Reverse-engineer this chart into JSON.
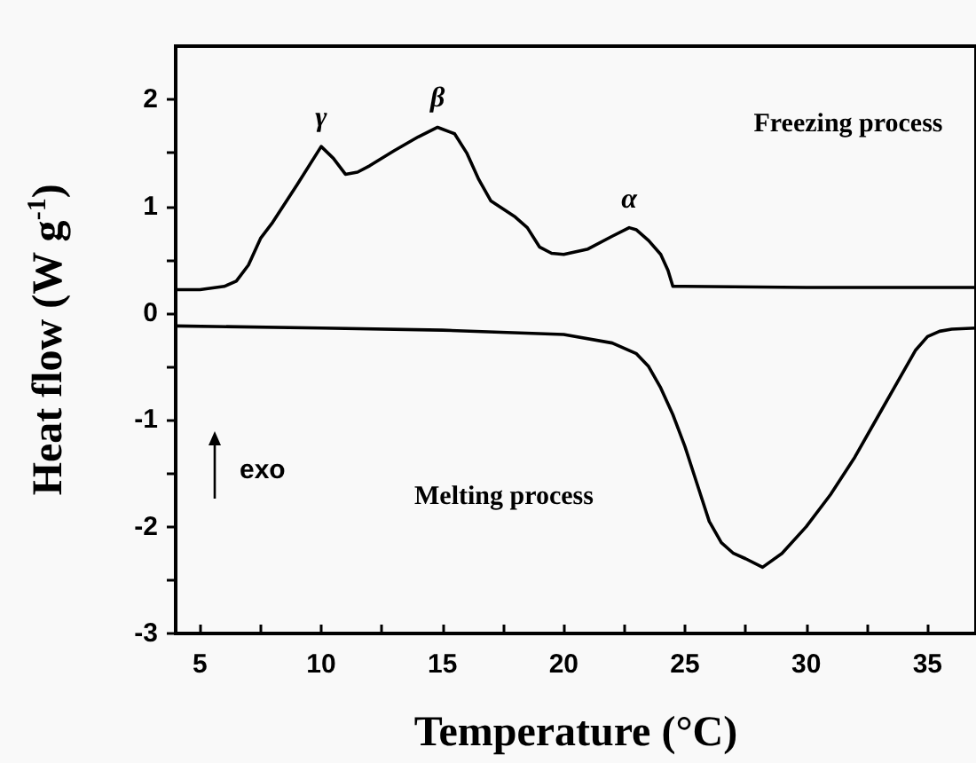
{
  "chart_data": {
    "type": "line",
    "xlabel": "Temperature (°C)",
    "ylabel": "Heat flow (W g$^{-1}$)",
    "xlim": [
      4,
      37
    ],
    "xticks": [
      5,
      {
        "value": 7.5,
        "label": null
      },
      10,
      {
        "value": 12.5,
        "label": null
      },
      15,
      {
        "value": 17.5,
        "label": null
      },
      20,
      {
        "value": 22.5,
        "label": null
      },
      25,
      {
        "value": 27.5,
        "label": null
      },
      30,
      {
        "value": 32.5,
        "label": null
      },
      35
    ],
    "ylim": [
      -3,
      2.5
    ],
    "yticks": [
      -3,
      {
        "value": -2.5,
        "label": null
      },
      -2,
      {
        "value": -1.5,
        "label": null
      },
      -1,
      {
        "value": -0.5,
        "label": null
      },
      0,
      {
        "value": 0.5,
        "label": null
      },
      1,
      {
        "value": 1.5,
        "label": null
      },
      2
    ],
    "grid": false,
    "marker": "none",
    "line_style": "solid",
    "series": [
      {
        "color": "#000000",
        "x": [
          4,
          5,
          6,
          6.5,
          7,
          7.5,
          8,
          9,
          10,
          10.5,
          11,
          11.5,
          12,
          13,
          14,
          14.8,
          15.5,
          16,
          16.5,
          17,
          18,
          18.5,
          19,
          19.5,
          20,
          21,
          22,
          22.7,
          23,
          23.5,
          24,
          24.3,
          24.5,
          25,
          30,
          37
        ],
        "values": [
          0.22,
          0.22,
          0.25,
          0.3,
          0.45,
          0.7,
          0.85,
          1.2,
          1.56,
          1.45,
          1.3,
          1.32,
          1.38,
          1.52,
          1.65,
          1.74,
          1.68,
          1.5,
          1.25,
          1.05,
          0.9,
          0.8,
          0.62,
          0.56,
          0.55,
          0.6,
          0.72,
          0.8,
          0.78,
          0.68,
          0.55,
          0.4,
          0.25,
          0.25,
          0.24,
          0.24
        ]
      },
      {
        "color": "#000000",
        "x": [
          4,
          10,
          15,
          20,
          22,
          23,
          23.5,
          24,
          24.5,
          25,
          25.5,
          26,
          26.5,
          27,
          27.5,
          28.2,
          29,
          30,
          31,
          32,
          33,
          34,
          34.5,
          35,
          35.5,
          36,
          37
        ],
        "values": [
          -0.12,
          -0.14,
          -0.16,
          -0.2,
          -0.28,
          -0.38,
          -0.5,
          -0.7,
          -0.95,
          -1.25,
          -1.6,
          -1.95,
          -2.15,
          -2.25,
          -2.3,
          -2.38,
          -2.25,
          -2,
          -1.7,
          -1.35,
          -0.95,
          -0.55,
          -0.35,
          -0.22,
          -0.17,
          -0.15,
          -0.14
        ]
      }
    ],
    "annotations": [
      {
        "text": "γ",
        "x": 10,
        "y": 1.56
      },
      {
        "text": "β",
        "x": 14.8,
        "y": 1.74
      },
      {
        "text": "α",
        "x": 22.7,
        "y": 0.8
      },
      "Freezing process",
      "Melting process",
      "exo"
    ]
  }
}
